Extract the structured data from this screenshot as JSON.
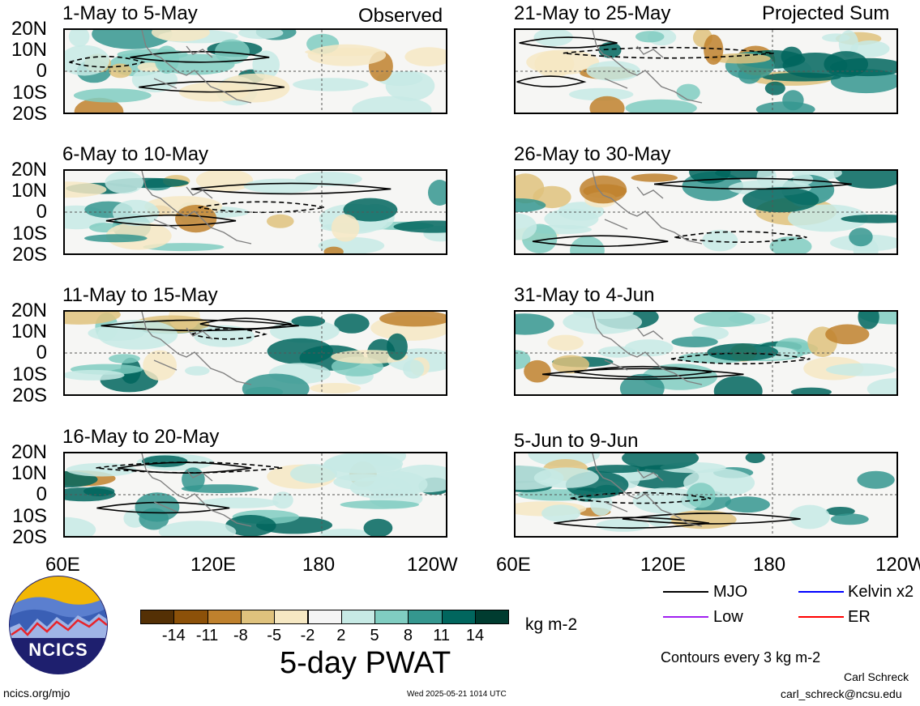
{
  "headers": {
    "left": "Observed",
    "right": "Projected Sum"
  },
  "panels": [
    {
      "title": "1-May to 5-May"
    },
    {
      "title": "21-May to 25-May"
    },
    {
      "title": "6-May to 10-May"
    },
    {
      "title": "26-May to 30-May"
    },
    {
      "title": "11-May to 15-May"
    },
    {
      "title": "31-May to 4-Jun"
    },
    {
      "title": "16-May to 20-May"
    },
    {
      "title": "5-Jun to 9-Jun"
    }
  ],
  "lat_labels": [
    "20N",
    "10N",
    "0",
    "10S",
    "20S"
  ],
  "lon_labels": [
    "60E",
    "120E",
    "180",
    "120W"
  ],
  "colorbar": {
    "ticks": [
      "-14",
      "-11",
      "-8",
      "-5",
      "-2",
      "2",
      "5",
      "8",
      "11",
      "14"
    ],
    "colors": [
      "#543005",
      "#8c5109",
      "#bf812d",
      "#dfc27d",
      "#f6e8c3",
      "#f5f5f5",
      "#c7eae5",
      "#80cdc1",
      "#35978f",
      "#01665e",
      "#003c30"
    ],
    "units": "kg m-2",
    "title": "5-day PWAT"
  },
  "legend": {
    "items": [
      {
        "label": "MJO",
        "color": "#000000"
      },
      {
        "label": "Kelvin x2",
        "color": "#0000ff"
      },
      {
        "label": "Low",
        "color": "#a020f0"
      },
      {
        "label": "ER",
        "color": "#ff0000"
      }
    ],
    "contour_note": "Contours every 3 kg m-2"
  },
  "logo": {
    "text": "NCICS"
  },
  "footer": {
    "url": "ncics.org/mjo",
    "timestamp": "Wed 2025-05-21 1014 UTC",
    "author": "Carl Schreck",
    "email": "carl_schreck@ncsu.edu"
  }
}
